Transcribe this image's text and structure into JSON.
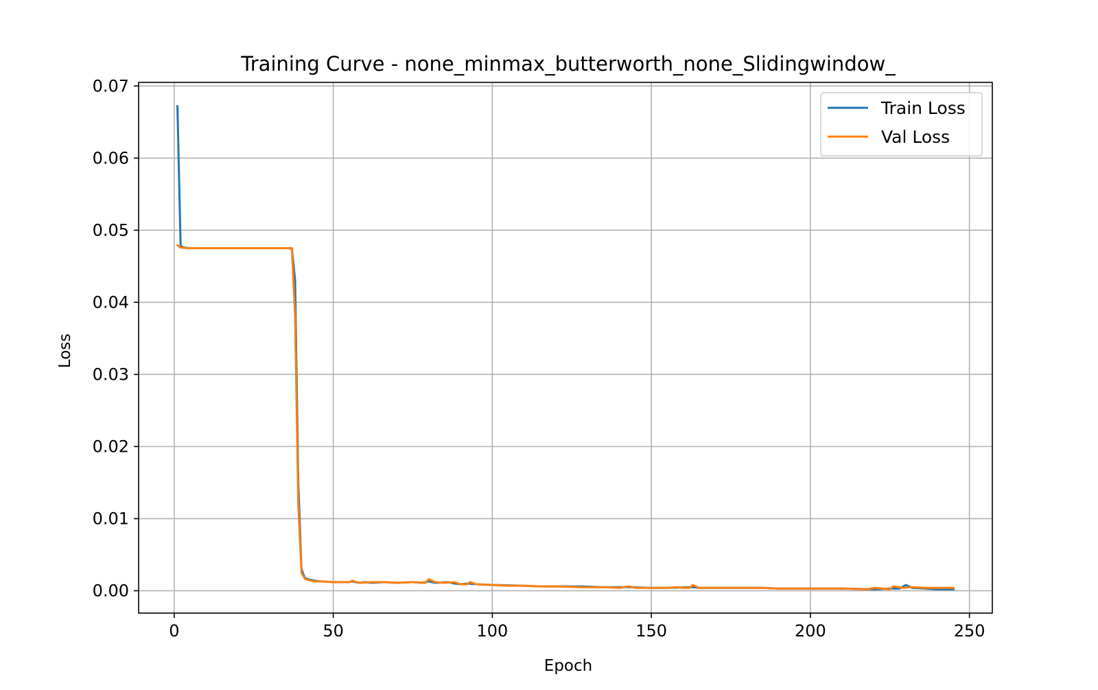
{
  "chart_data": {
    "type": "line",
    "title": "Training Curve - none_minmax_butterworth_none_Slidingwindow_",
    "xlabel": "Epoch",
    "ylabel": "Loss",
    "xlim": [
      -11.2,
      257.2
    ],
    "ylim": [
      -0.0031,
      0.0705
    ],
    "xticks": [
      0,
      50,
      100,
      150,
      200,
      250
    ],
    "yticks": [
      0.0,
      0.01,
      0.02,
      0.03,
      0.04,
      0.05,
      0.06,
      0.07
    ],
    "ytick_decimals": 2,
    "grid": true,
    "legend": "top-right",
    "series": [
      {
        "name": "Train Loss",
        "color": "#1f77b4",
        "points": [
          [
            1,
            0.0672
          ],
          [
            2,
            0.0478
          ],
          [
            3,
            0.0476
          ],
          [
            5,
            0.0475
          ],
          [
            10,
            0.0475
          ],
          [
            20,
            0.0475
          ],
          [
            30,
            0.0475
          ],
          [
            36,
            0.0475
          ],
          [
            37,
            0.0474
          ],
          [
            38,
            0.043
          ],
          [
            39,
            0.015
          ],
          [
            40,
            0.003
          ],
          [
            41,
            0.0018
          ],
          [
            42,
            0.0016
          ],
          [
            44,
            0.0014
          ],
          [
            46,
            0.0013
          ],
          [
            50,
            0.0012
          ],
          [
            55,
            0.0012
          ],
          [
            56,
            0.0013
          ],
          [
            58,
            0.0011
          ],
          [
            60,
            0.0012
          ],
          [
            62,
            0.0011
          ],
          [
            66,
            0.0012
          ],
          [
            70,
            0.0011
          ],
          [
            75,
            0.0012
          ],
          [
            78,
            0.0011
          ],
          [
            80,
            0.0013
          ],
          [
            82,
            0.0011
          ],
          [
            86,
            0.0012
          ],
          [
            88,
            0.001
          ],
          [
            90,
            0.0009
          ],
          [
            92,
            0.001
          ],
          [
            95,
            0.0009
          ],
          [
            100,
            0.0008
          ],
          [
            110,
            0.0007
          ],
          [
            115,
            0.0006
          ],
          [
            120,
            0.0006
          ],
          [
            128,
            0.0006
          ],
          [
            135,
            0.0005
          ],
          [
            143,
            0.0005
          ],
          [
            150,
            0.0004
          ],
          [
            155,
            0.0004
          ],
          [
            163,
            0.0005
          ],
          [
            165,
            0.0004
          ],
          [
            175,
            0.0004
          ],
          [
            185,
            0.0004
          ],
          [
            190,
            0.0003
          ],
          [
            200,
            0.0003
          ],
          [
            210,
            0.0003
          ],
          [
            220,
            0.0002
          ],
          [
            225,
            0.0003
          ],
          [
            228,
            0.0003
          ],
          [
            230,
            0.0008
          ],
          [
            232,
            0.0004
          ],
          [
            236,
            0.0003
          ],
          [
            240,
            0.0002
          ],
          [
            245,
            0.0002
          ]
        ]
      },
      {
        "name": "Val Loss",
        "color": "#ff7f0e",
        "points": [
          [
            1,
            0.0479
          ],
          [
            2,
            0.0476
          ],
          [
            4,
            0.0475
          ],
          [
            10,
            0.0475
          ],
          [
            20,
            0.0475
          ],
          [
            30,
            0.0475
          ],
          [
            37,
            0.0475
          ],
          [
            38,
            0.038
          ],
          [
            39,
            0.012
          ],
          [
            40,
            0.0025
          ],
          [
            41,
            0.0017
          ],
          [
            42,
            0.0015
          ],
          [
            44,
            0.0013
          ],
          [
            46,
            0.0013
          ],
          [
            50,
            0.0012
          ],
          [
            55,
            0.0012
          ],
          [
            56,
            0.0014
          ],
          [
            58,
            0.0011
          ],
          [
            62,
            0.0012
          ],
          [
            66,
            0.0012
          ],
          [
            70,
            0.0011
          ],
          [
            75,
            0.0012
          ],
          [
            79,
            0.0011
          ],
          [
            80,
            0.0016
          ],
          [
            82,
            0.0012
          ],
          [
            85,
            0.0011
          ],
          [
            88,
            0.0012
          ],
          [
            90,
            0.0009
          ],
          [
            92,
            0.0009
          ],
          [
            93,
            0.0012
          ],
          [
            95,
            0.0009
          ],
          [
            100,
            0.0008
          ],
          [
            105,
            0.0007
          ],
          [
            110,
            0.0007
          ],
          [
            115,
            0.0006
          ],
          [
            120,
            0.0006
          ],
          [
            128,
            0.0005
          ],
          [
            135,
            0.0005
          ],
          [
            140,
            0.0004
          ],
          [
            143,
            0.0006
          ],
          [
            145,
            0.0004
          ],
          [
            150,
            0.0004
          ],
          [
            155,
            0.0004
          ],
          [
            158,
            0.0005
          ],
          [
            160,
            0.0004
          ],
          [
            162,
            0.0004
          ],
          [
            163,
            0.0008
          ],
          [
            165,
            0.0004
          ],
          [
            175,
            0.0004
          ],
          [
            185,
            0.0004
          ],
          [
            190,
            0.0003
          ],
          [
            200,
            0.0003
          ],
          [
            210,
            0.0003
          ],
          [
            218,
            0.0002
          ],
          [
            220,
            0.0004
          ],
          [
            223,
            0.0003
          ],
          [
            225,
            0.0002
          ],
          [
            226,
            0.0006
          ],
          [
            228,
            0.0005
          ],
          [
            229,
            0.0004
          ],
          [
            232,
            0.0005
          ],
          [
            236,
            0.0004
          ],
          [
            240,
            0.0004
          ],
          [
            245,
            0.0004
          ]
        ]
      }
    ]
  }
}
